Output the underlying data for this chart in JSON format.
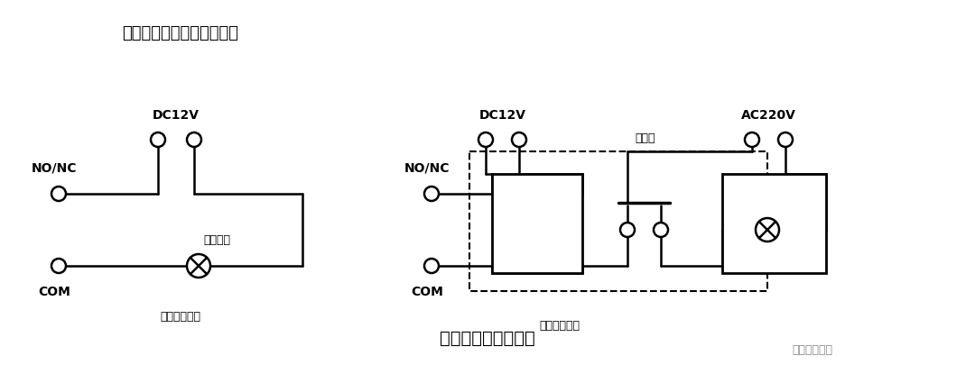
{
  "bg_color": "#ffffff",
  "title_text": "报警输出接线如下图所示：",
  "bottom_title": "报警输出接线原理图",
  "watermark": "弱电智能化吧",
  "left_label": "外接直流负载",
  "right_label": "外接交流负载",
  "dc12v": "DC12V",
  "ac220v": "AC220V",
  "nonc": "NO/NC",
  "com": "COM",
  "relay_label": "继电器",
  "device_label": "外接设备"
}
